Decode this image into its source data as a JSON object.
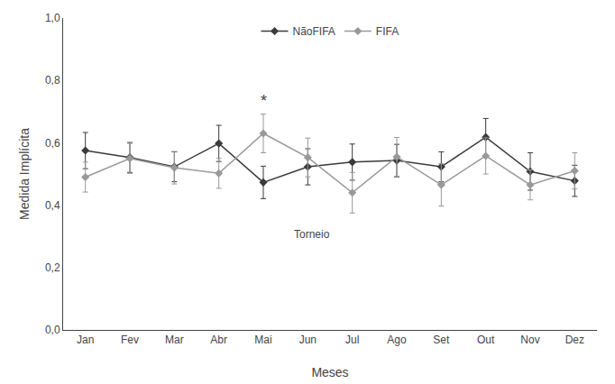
{
  "chart_data": {
    "type": "line",
    "categories": [
      "Jan",
      "Fev",
      "Mar",
      "Abr",
      "Mai",
      "Jun",
      "Jul",
      "Ago",
      "Set",
      "Out",
      "Nov",
      "Dez"
    ],
    "series": [
      {
        "name": "NãoFIFA",
        "color": "#3a3a3a",
        "marker": "diamond",
        "values": [
          0.575,
          0.553,
          0.523,
          0.598,
          0.473,
          0.523,
          0.538,
          0.543,
          0.523,
          0.618,
          0.508,
          0.478
        ],
        "errors": [
          0.058,
          0.048,
          0.048,
          0.058,
          0.052,
          0.058,
          0.058,
          0.052,
          0.048,
          0.06,
          0.06,
          0.05
        ]
      },
      {
        "name": "FIFA",
        "color": "#999999",
        "marker": "diamond",
        "values": [
          0.49,
          0.55,
          0.52,
          0.502,
          0.63,
          0.553,
          0.44,
          0.555,
          0.465,
          0.558,
          0.465,
          0.51
        ],
        "errors": [
          0.048,
          0.048,
          0.052,
          0.048,
          0.062,
          0.062,
          0.065,
          0.062,
          0.068,
          0.058,
          0.048,
          0.058
        ]
      }
    ],
    "xlabel": "Meses",
    "ylabel": "Medida Implícita",
    "ylim": [
      0.0,
      1.0
    ],
    "yticks": [
      {
        "value": 0.0,
        "label": "0,0"
      },
      {
        "value": 0.2,
        "label": "0,2"
      },
      {
        "value": 0.4,
        "label": "0,4"
      },
      {
        "value": 0.6,
        "label": "0,6"
      },
      {
        "value": 0.8,
        "label": "0,8"
      },
      {
        "value": 1.0,
        "label": "1,0"
      }
    ],
    "annotations": [
      {
        "text": "*",
        "x": "Mai",
        "y": 0.7
      },
      {
        "text": "Torneio",
        "x": 5.1,
        "y": 0.305
      }
    ],
    "legend": "upper center",
    "grid": false
  }
}
